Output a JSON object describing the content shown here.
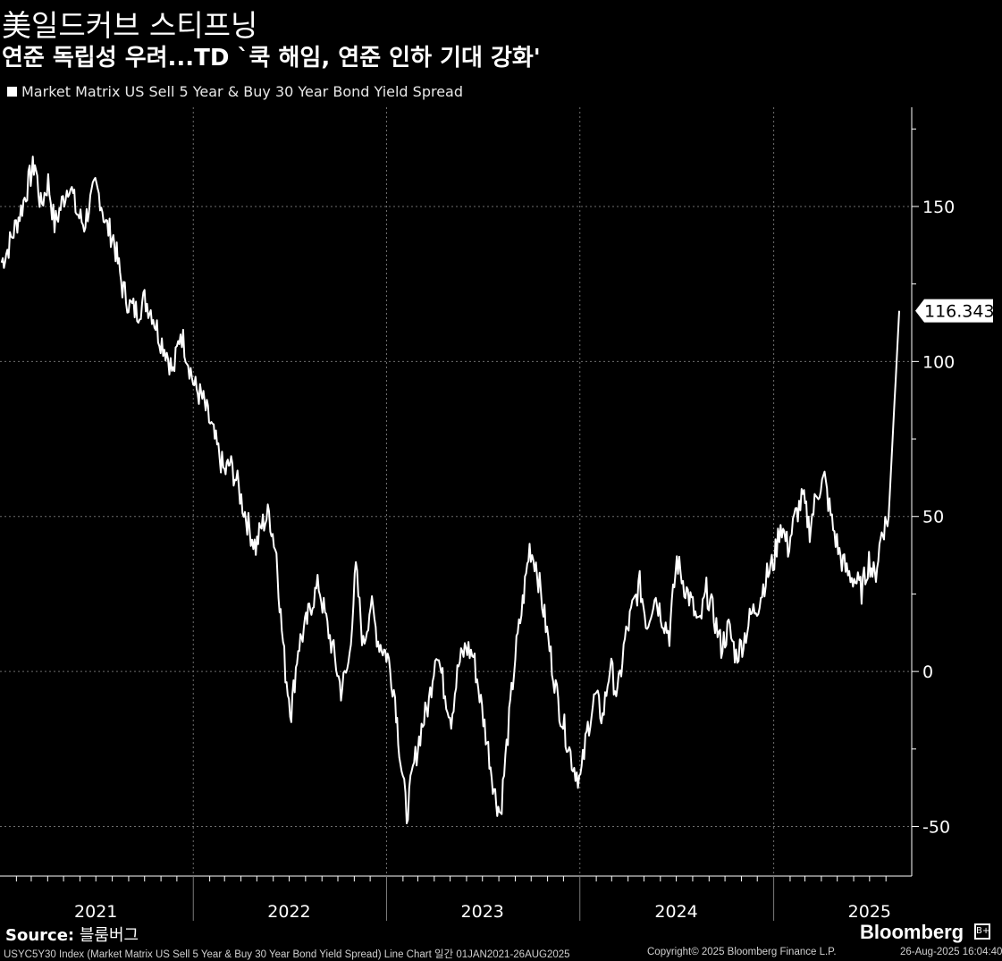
{
  "header": {
    "title": "美일드커브 스티프닝",
    "subtitle": "연준 독립성 우려...TD `쿡 해임, 연준 인하 기대 강화'"
  },
  "chart_data": {
    "type": "line",
    "title": "",
    "xlabel": "",
    "ylabel": "",
    "x_range": [
      "2021-01-01",
      "2025-08-26"
    ],
    "ylim": [
      -66,
      182
    ],
    "y_ticks": [
      150,
      100,
      50,
      0,
      -50
    ],
    "x_tick_labels": [
      "2021",
      "2022",
      "2023",
      "2024",
      "2025"
    ],
    "grid": true,
    "legend_position": "top-left",
    "last_value_label": "116.343",
    "series": [
      {
        "name": "Market Matrix US Sell 5 Year & Buy 30 Year Bond Yield Spread",
        "color": "#ffffff",
        "points": [
          [
            "2021-01-04",
            132
          ],
          [
            "2021-01-15",
            136
          ],
          [
            "2021-01-29",
            143
          ],
          [
            "2021-02-12",
            150
          ],
          [
            "2021-02-26",
            159
          ],
          [
            "2021-03-08",
            164
          ],
          [
            "2021-03-19",
            150
          ],
          [
            "2021-04-02",
            158
          ],
          [
            "2021-04-14",
            144
          ],
          [
            "2021-04-30",
            152
          ],
          [
            "2021-05-12",
            158
          ],
          [
            "2021-05-26",
            148
          ],
          [
            "2021-06-09",
            144
          ],
          [
            "2021-06-18",
            150
          ],
          [
            "2021-06-30",
            156
          ],
          [
            "2021-07-09",
            153
          ],
          [
            "2021-07-20",
            144
          ],
          [
            "2021-08-03",
            140
          ],
          [
            "2021-08-20",
            124
          ],
          [
            "2021-09-03",
            118
          ],
          [
            "2021-09-17",
            116
          ],
          [
            "2021-10-01",
            120
          ],
          [
            "2021-10-15",
            116
          ],
          [
            "2021-10-29",
            108
          ],
          [
            "2021-11-12",
            103
          ],
          [
            "2021-11-24",
            96
          ],
          [
            "2021-12-08",
            110
          ],
          [
            "2021-12-20",
            102
          ],
          [
            "2022-01-03",
            92
          ],
          [
            "2022-01-18",
            88
          ],
          [
            "2022-02-02",
            80
          ],
          [
            "2022-02-15",
            72
          ],
          [
            "2022-03-01",
            64
          ],
          [
            "2022-03-11",
            67
          ],
          [
            "2022-03-23",
            62
          ],
          [
            "2022-04-04",
            54
          ],
          [
            "2022-04-15",
            47
          ],
          [
            "2022-04-29",
            40
          ],
          [
            "2022-05-10",
            47
          ],
          [
            "2022-05-24",
            51
          ],
          [
            "2022-06-07",
            38
          ],
          [
            "2022-06-15",
            18
          ],
          [
            "2022-06-24",
            0
          ],
          [
            "2022-07-05",
            -13
          ],
          [
            "2022-07-18",
            8
          ],
          [
            "2022-08-02",
            15
          ],
          [
            "2022-08-12",
            22
          ],
          [
            "2022-08-26",
            28
          ],
          [
            "2022-09-09",
            16
          ],
          [
            "2022-09-23",
            6
          ],
          [
            "2022-10-07",
            -6
          ],
          [
            "2022-10-21",
            2
          ],
          [
            "2022-11-04",
            33
          ],
          [
            "2022-11-18",
            8
          ],
          [
            "2022-12-02",
            22
          ],
          [
            "2022-12-16",
            10
          ],
          [
            "2023-01-03",
            5
          ],
          [
            "2023-01-17",
            -8
          ],
          [
            "2023-01-27",
            -28
          ],
          [
            "2023-02-08",
            -46
          ],
          [
            "2023-02-22",
            -30
          ],
          [
            "2023-03-08",
            -18
          ],
          [
            "2023-03-22",
            -10
          ],
          [
            "2023-04-05",
            8
          ],
          [
            "2023-04-19",
            -5
          ],
          [
            "2023-05-03",
            -15
          ],
          [
            "2023-05-17",
            2
          ],
          [
            "2023-05-31",
            8
          ],
          [
            "2023-06-14",
            5
          ],
          [
            "2023-06-28",
            -10
          ],
          [
            "2023-07-12",
            -25
          ],
          [
            "2023-07-25",
            -40
          ],
          [
            "2023-08-04",
            -46
          ],
          [
            "2023-08-18",
            -20
          ],
          [
            "2023-09-01",
            5
          ],
          [
            "2023-09-15",
            22
          ],
          [
            "2023-09-28",
            40
          ],
          [
            "2023-10-10",
            35
          ],
          [
            "2023-10-24",
            20
          ],
          [
            "2023-11-07",
            5
          ],
          [
            "2023-11-21",
            -10
          ],
          [
            "2023-12-05",
            -20
          ],
          [
            "2023-12-19",
            -30
          ],
          [
            "2024-01-02",
            -35
          ],
          [
            "2024-01-16",
            -18
          ],
          [
            "2024-01-30",
            -8
          ],
          [
            "2024-02-13",
            -15
          ],
          [
            "2024-02-27",
            2
          ],
          [
            "2024-03-12",
            -8
          ],
          [
            "2024-03-26",
            10
          ],
          [
            "2024-04-09",
            20
          ],
          [
            "2024-04-23",
            28
          ],
          [
            "2024-05-07",
            15
          ],
          [
            "2024-05-21",
            25
          ],
          [
            "2024-06-04",
            18
          ],
          [
            "2024-06-18",
            12
          ],
          [
            "2024-07-02",
            36
          ],
          [
            "2024-07-16",
            28
          ],
          [
            "2024-07-30",
            22
          ],
          [
            "2024-08-13",
            14
          ],
          [
            "2024-08-27",
            26
          ],
          [
            "2024-09-10",
            18
          ],
          [
            "2024-09-24",
            8
          ],
          [
            "2024-10-08",
            14
          ],
          [
            "2024-10-22",
            5
          ],
          [
            "2024-11-05",
            10
          ],
          [
            "2024-11-19",
            18
          ],
          [
            "2024-12-03",
            22
          ],
          [
            "2024-12-17",
            30
          ],
          [
            "2025-01-02",
            36
          ],
          [
            "2025-01-14",
            48
          ],
          [
            "2025-01-28",
            40
          ],
          [
            "2025-02-11",
            50
          ],
          [
            "2025-02-25",
            56
          ],
          [
            "2025-03-10",
            46
          ],
          [
            "2025-03-24",
            58
          ],
          [
            "2025-04-07",
            62
          ],
          [
            "2025-04-21",
            48
          ],
          [
            "2025-05-05",
            38
          ],
          [
            "2025-05-19",
            32
          ],
          [
            "2025-06-02",
            30
          ],
          [
            "2025-06-16",
            26
          ],
          [
            "2025-06-30",
            36
          ],
          [
            "2025-07-11",
            30
          ],
          [
            "2025-07-24",
            45
          ],
          [
            "2025-08-06",
            50
          ],
          [
            "2025-08-26",
            116.343
          ]
        ]
      }
    ]
  },
  "footer": {
    "source_label": "Source:",
    "source_value": "블룸버그",
    "brand": "Bloomberg",
    "brand_icon": "B+",
    "index_note": "USYC5Y30 Index (Market Matrix US Sell 5 Year & Buy 30 Year Bond Yield Spread) Line Chart  일간 01JAN2021-26AUG2025",
    "copyright": "Copyright© 2025 Bloomberg Finance L.P.",
    "timestamp": "26-Aug-2025 16:04:40"
  }
}
